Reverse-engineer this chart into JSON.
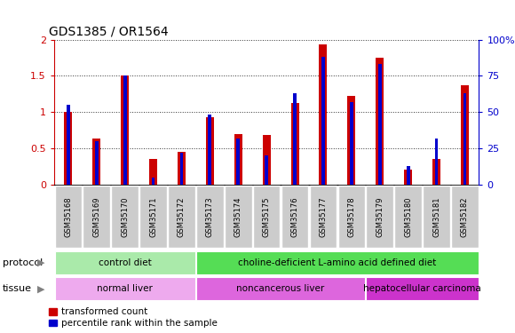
{
  "title": "GDS1385 / OR1564",
  "samples": [
    "GSM35168",
    "GSM35169",
    "GSM35170",
    "GSM35171",
    "GSM35172",
    "GSM35173",
    "GSM35174",
    "GSM35175",
    "GSM35176",
    "GSM35177",
    "GSM35178",
    "GSM35179",
    "GSM35180",
    "GSM35181",
    "GSM35182"
  ],
  "transformed_count": [
    1.0,
    0.63,
    1.5,
    0.35,
    0.45,
    0.93,
    0.7,
    0.68,
    1.13,
    1.93,
    1.22,
    1.75,
    0.2,
    0.35,
    1.37
  ],
  "percentile_rank": [
    55,
    30,
    75,
    5,
    22,
    48,
    32,
    20,
    63,
    88,
    57,
    83,
    13,
    32,
    63
  ],
  "red_color": "#cc0000",
  "blue_color": "#0000cc",
  "ylim_left": [
    0,
    2.0
  ],
  "ylim_right": [
    0,
    100
  ],
  "yticks_left": [
    0,
    0.5,
    1.0,
    1.5,
    2.0
  ],
  "yticks_right": [
    0,
    25,
    50,
    75,
    100
  ],
  "protocol_groups": [
    {
      "label": "control diet",
      "start": 0,
      "end": 4,
      "color": "#aaeaaa"
    },
    {
      "label": "choline-deficient L-amino acid defined diet",
      "start": 5,
      "end": 14,
      "color": "#55dd55"
    }
  ],
  "tissue_groups": [
    {
      "label": "normal liver",
      "start": 0,
      "end": 4,
      "color": "#eeaaee"
    },
    {
      "label": "noncancerous liver",
      "start": 5,
      "end": 10,
      "color": "#dd66dd"
    },
    {
      "label": "hepatocellular carcinoma",
      "start": 11,
      "end": 14,
      "color": "#cc33cc"
    }
  ],
  "chart_bg": "#ffffff",
  "xtick_box_color": "#cccccc",
  "protocol_label": "protocol",
  "tissue_label": "tissue",
  "legend_red": "transformed count",
  "legend_blue": "percentile rank within the sample"
}
